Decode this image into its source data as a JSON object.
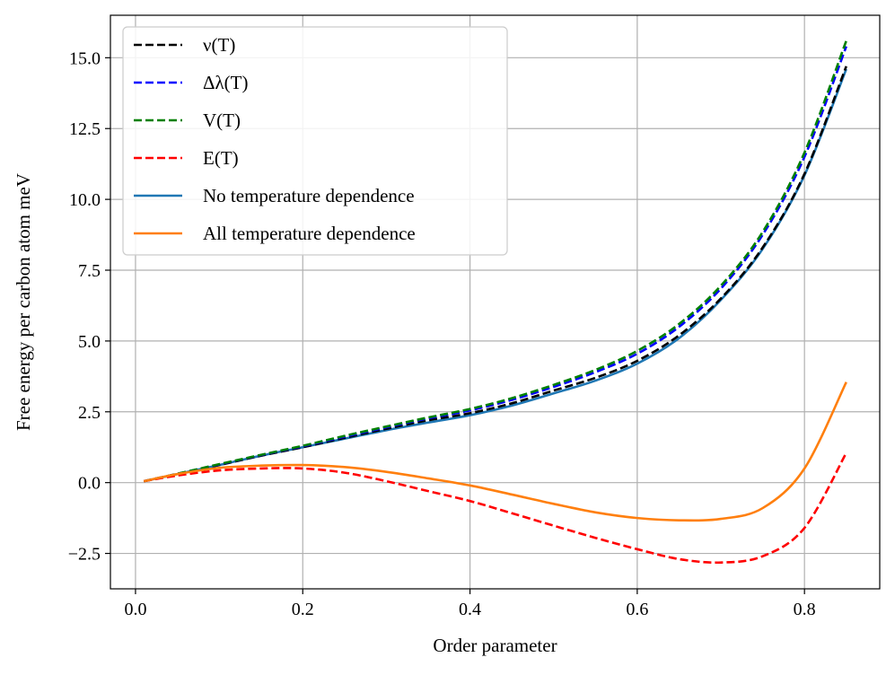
{
  "chart_data": {
    "type": "line",
    "title": "",
    "xlabel": "Order parameter",
    "ylabel": "Free energy per carbon atom meV",
    "xlim": [
      -0.03,
      0.89
    ],
    "ylim": [
      -3.75,
      16.5
    ],
    "xticks": [
      0.0,
      0.2,
      0.4,
      0.6,
      0.8
    ],
    "xtick_labels": [
      "0.0",
      "0.2",
      "0.4",
      "0.6",
      "0.8"
    ],
    "yticks": [
      -2.5,
      0.0,
      2.5,
      5.0,
      7.5,
      10.0,
      12.5,
      15.0
    ],
    "ytick_labels": [
      "−2.5",
      "0.0",
      "2.5",
      "5.0",
      "7.5",
      "10.0",
      "12.5",
      "15.0"
    ],
    "grid": true,
    "legend_position": "upper-left",
    "x": [
      0.01,
      0.05,
      0.1,
      0.15,
      0.2,
      0.25,
      0.3,
      0.35,
      0.4,
      0.45,
      0.5,
      0.55,
      0.6,
      0.65,
      0.7,
      0.75,
      0.8,
      0.85
    ],
    "series": [
      {
        "name": "ν(T)",
        "style": "dashed",
        "color": "#000000",
        "values": [
          0.05,
          0.3,
          0.62,
          0.95,
          1.25,
          1.58,
          1.9,
          2.2,
          2.45,
          2.8,
          3.25,
          3.7,
          4.3,
          5.2,
          6.5,
          8.3,
          10.9,
          14.7
        ]
      },
      {
        "name": "Δλ(T)",
        "style": "dashed",
        "color": "#0000ff",
        "values": [
          0.05,
          0.31,
          0.64,
          0.97,
          1.28,
          1.62,
          1.95,
          2.27,
          2.55,
          2.92,
          3.38,
          3.9,
          4.55,
          5.5,
          6.85,
          8.75,
          11.5,
          15.4
        ]
      },
      {
        "name": "V(T)",
        "style": "dashed",
        "color": "#008000",
        "values": [
          0.05,
          0.31,
          0.65,
          0.98,
          1.3,
          1.65,
          1.98,
          2.3,
          2.6,
          2.98,
          3.45,
          3.98,
          4.65,
          5.6,
          6.95,
          8.85,
          11.65,
          15.6
        ]
      },
      {
        "name": "E(T)",
        "style": "dashed",
        "color": "#ff0000",
        "values": [
          0.05,
          0.25,
          0.43,
          0.5,
          0.5,
          0.35,
          0.05,
          -0.3,
          -0.65,
          -1.08,
          -1.52,
          -1.95,
          -2.35,
          -2.7,
          -2.82,
          -2.6,
          -1.6,
          1.05
        ]
      },
      {
        "name": "No temperature dependence",
        "style": "solid",
        "color": "#1f77b4",
        "values": [
          0.05,
          0.3,
          0.62,
          0.95,
          1.25,
          1.55,
          1.85,
          2.12,
          2.38,
          2.72,
          3.15,
          3.6,
          4.2,
          5.1,
          6.45,
          8.25,
          10.85,
          14.6
        ]
      },
      {
        "name": "All temperature dependence",
        "style": "solid",
        "color": "#ff7f0e",
        "values": [
          0.05,
          0.3,
          0.52,
          0.6,
          0.62,
          0.55,
          0.38,
          0.15,
          -0.1,
          -0.42,
          -0.75,
          -1.05,
          -1.25,
          -1.33,
          -1.28,
          -0.9,
          0.5,
          3.55
        ]
      }
    ]
  }
}
